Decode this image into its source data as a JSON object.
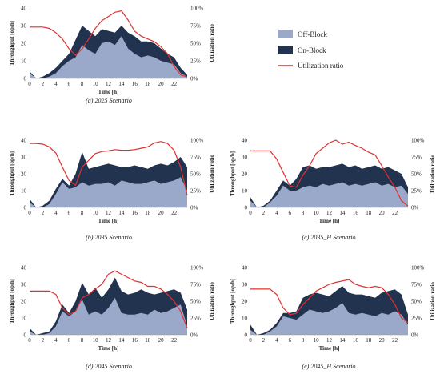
{
  "colors": {
    "off_block": "#9aa9c9",
    "on_block": "#22334f",
    "utilization": "#e03131"
  },
  "legend": {
    "off_block": "Off-Block",
    "on_block": "On-Block",
    "utilization": "Utilization ratio"
  },
  "chart_data": [
    {
      "type": "area",
      "caption": "(a) 2025 Scenario",
      "xlabel": "Time [h]",
      "ylabel": "Throughput [op/h]",
      "y2label": "Utilization ratio",
      "xticks": [
        "0",
        "2",
        "4",
        "6",
        "8",
        "10",
        "12",
        "14",
        "16",
        "18",
        "20",
        "22"
      ],
      "yticks": [
        "0",
        "10",
        "20",
        "30",
        "40"
      ],
      "y2ticks": [
        "0%",
        "25%",
        "50%",
        "75%",
        "100%"
      ],
      "xlim": [
        0,
        24
      ],
      "ylim": [
        0,
        40
      ],
      "y2lim": [
        0,
        100
      ],
      "x": [
        0,
        1,
        2,
        3,
        4,
        5,
        6,
        7,
        8,
        9,
        10,
        11,
        12,
        13,
        14,
        15,
        16,
        17,
        18,
        19,
        20,
        21,
        22,
        23,
        24
      ],
      "series": [
        {
          "name": "Off-Block",
          "values": [
            3,
            0,
            0,
            1,
            3,
            7,
            10,
            12,
            19,
            16,
            14,
            20,
            21,
            19,
            24,
            17,
            14,
            12,
            13,
            12,
            10,
            9,
            8,
            3,
            1
          ]
        },
        {
          "name": "On-Block",
          "values": [
            4,
            0,
            1,
            3,
            6,
            10,
            14,
            22,
            30,
            27,
            24,
            28,
            27,
            26,
            30,
            26,
            24,
            21,
            21,
            20,
            17,
            14,
            12,
            6,
            2
          ]
        },
        {
          "name": "Utilization ratio",
          "axis": "right",
          "values": [
            73,
            73,
            73,
            71,
            65,
            56,
            42,
            33,
            42,
            56,
            71,
            82,
            88,
            94,
            96,
            83,
            67,
            60,
            56,
            52,
            45,
            35,
            17,
            5,
            2
          ]
        }
      ]
    },
    {
      "type": "area",
      "caption": "(b) 2035 Scenario",
      "xlabel": "Time [h]",
      "ylabel": "Throughput [op/h]",
      "y2label": "Utilization ratio",
      "xticks": [
        "0",
        "2",
        "4",
        "6",
        "8",
        "10",
        "12",
        "14",
        "16",
        "18",
        "20",
        "22"
      ],
      "yticks": [
        "0",
        "10",
        "20",
        "30",
        "40"
      ],
      "y2ticks": [
        "0%",
        "25%",
        "50%",
        "75%",
        "100%"
      ],
      "xlim": [
        0,
        24
      ],
      "ylim": [
        0,
        40
      ],
      "y2lim": [
        0,
        100
      ],
      "x": [
        0,
        1,
        2,
        3,
        4,
        5,
        6,
        7,
        8,
        9,
        10,
        11,
        12,
        13,
        14,
        15,
        16,
        17,
        18,
        19,
        20,
        21,
        22,
        23,
        24
      ],
      "series": [
        {
          "name": "Off-Block",
          "values": [
            3,
            0,
            0,
            2,
            8,
            15,
            11,
            12,
            15,
            13,
            14,
            14,
            15,
            13,
            16,
            15,
            14,
            14,
            15,
            16,
            14,
            15,
            16,
            18,
            10
          ]
        },
        {
          "name": "On-Block",
          "values": [
            5,
            0,
            1,
            4,
            11,
            17,
            13,
            20,
            33,
            23,
            24,
            25,
            26,
            25,
            24,
            24,
            25,
            24,
            23,
            25,
            26,
            25,
            27,
            30,
            24
          ]
        },
        {
          "name": "Utilization ratio",
          "axis": "right",
          "values": [
            95,
            95,
            94,
            90,
            81,
            60,
            40,
            33,
            60,
            70,
            80,
            83,
            84,
            86,
            85,
            85,
            86,
            88,
            90,
            96,
            98,
            95,
            85,
            60,
            18
          ]
        }
      ]
    },
    {
      "type": "area",
      "caption": "(c) 2035_H Scenario",
      "xlabel": "Time [h]",
      "ylabel": "Throughput [op/h]",
      "y2label": "Utilization ratio",
      "xticks": [
        "0",
        "2",
        "4",
        "6",
        "8",
        "10",
        "12",
        "14",
        "16",
        "18",
        "20",
        "22"
      ],
      "yticks": [
        "0",
        "10",
        "20",
        "30",
        "40"
      ],
      "y2ticks": [
        "0%",
        "25%",
        "50%",
        "75%",
        "100%"
      ],
      "xlim": [
        0,
        24
      ],
      "ylim": [
        0,
        40
      ],
      "y2lim": [
        0,
        100
      ],
      "x": [
        0,
        1,
        2,
        3,
        4,
        5,
        6,
        7,
        8,
        9,
        10,
        11,
        12,
        13,
        14,
        15,
        16,
        17,
        18,
        19,
        20,
        21,
        22,
        23,
        24
      ],
      "series": [
        {
          "name": "Off-Block",
          "values": [
            4,
            0,
            0,
            3,
            7,
            13,
            10,
            10,
            12,
            13,
            12,
            14,
            13,
            14,
            15,
            13,
            14,
            13,
            14,
            15,
            13,
            14,
            12,
            13,
            8
          ]
        },
        {
          "name": "On-Block",
          "values": [
            6,
            0,
            1,
            4,
            10,
            16,
            13,
            17,
            24,
            25,
            23,
            24,
            24,
            25,
            26,
            24,
            25,
            23,
            24,
            25,
            23,
            24,
            22,
            20,
            12
          ]
        },
        {
          "name": "Utilization ratio",
          "axis": "right",
          "values": [
            84,
            84,
            84,
            84,
            72,
            52,
            32,
            30,
            48,
            62,
            80,
            88,
            96,
            100,
            94,
            97,
            92,
            88,
            82,
            78,
            62,
            45,
            30,
            10,
            2
          ]
        }
      ]
    },
    {
      "type": "area",
      "caption": "(d) 2045 Scenario",
      "xlabel": "Time [h]",
      "ylabel": "Throughput [op/h]",
      "y2label": "Utilization ratio",
      "xticks": [
        "0",
        "2",
        "4",
        "6",
        "8",
        "10",
        "12",
        "14",
        "16",
        "18",
        "20",
        "22"
      ],
      "yticks": [
        "0",
        "10",
        "20",
        "30",
        "40"
      ],
      "y2ticks": [
        "0%",
        "25%",
        "50%",
        "75%",
        "100%"
      ],
      "xlim": [
        0,
        24
      ],
      "ylim": [
        0,
        40
      ],
      "y2lim": [
        0,
        100
      ],
      "x": [
        0,
        1,
        2,
        3,
        4,
        5,
        6,
        7,
        8,
        9,
        10,
        11,
        12,
        13,
        14,
        15,
        16,
        17,
        18,
        19,
        20,
        21,
        22,
        23,
        24
      ],
      "series": [
        {
          "name": "Off-Block",
          "values": [
            2,
            0,
            0,
            1,
            5,
            14,
            11,
            14,
            21,
            12,
            14,
            12,
            16,
            22,
            13,
            12,
            12,
            13,
            12,
            15,
            13,
            14,
            16,
            18,
            5
          ]
        },
        {
          "name": "On-Block",
          "values": [
            4,
            0,
            1,
            2,
            8,
            18,
            13,
            20,
            31,
            24,
            28,
            22,
            27,
            34,
            26,
            24,
            25,
            27,
            25,
            24,
            25,
            26,
            27,
            25,
            15
          ]
        },
        {
          "name": "Utilization ratio",
          "axis": "right",
          "values": [
            65,
            65,
            65,
            65,
            60,
            40,
            30,
            35,
            55,
            60,
            68,
            75,
            90,
            95,
            90,
            85,
            80,
            78,
            72,
            72,
            68,
            60,
            50,
            35,
            10
          ]
        }
      ]
    },
    {
      "type": "area",
      "caption": "(e) 2045_H Scenario",
      "xlabel": "Time [h]",
      "ylabel": "Throughput [op/h]",
      "y2label": "Utilization ratio",
      "xticks": [
        "0",
        "2",
        "4",
        "6",
        "8",
        "10",
        "12",
        "14",
        "16",
        "18",
        "20",
        "22"
      ],
      "yticks": [
        "0",
        "10",
        "20",
        "30",
        "40"
      ],
      "y2ticks": [
        "0%",
        "25%",
        "50%",
        "75%",
        "100%"
      ],
      "xlim": [
        0,
        24
      ],
      "ylim": [
        0,
        40
      ],
      "y2lim": [
        0,
        100
      ],
      "x": [
        0,
        1,
        2,
        3,
        4,
        5,
        6,
        7,
        8,
        9,
        10,
        11,
        12,
        13,
        14,
        15,
        16,
        17,
        18,
        19,
        20,
        21,
        22,
        23,
        24
      ],
      "series": [
        {
          "name": "Off-Block",
          "values": [
            3,
            0,
            0,
            2,
            5,
            11,
            10,
            9,
            12,
            15,
            14,
            13,
            14,
            16,
            19,
            13,
            12,
            13,
            12,
            11,
            13,
            12,
            14,
            12,
            6
          ]
        },
        {
          "name": "On-Block",
          "values": [
            6,
            0,
            1,
            3,
            7,
            13,
            13,
            14,
            22,
            24,
            25,
            24,
            23,
            26,
            29,
            25,
            24,
            24,
            23,
            22,
            25,
            26,
            27,
            24,
            12
          ]
        },
        {
          "name": "Utilization ratio",
          "axis": "right",
          "values": [
            68,
            68,
            68,
            68,
            60,
            40,
            30,
            32,
            45,
            55,
            65,
            70,
            75,
            78,
            80,
            82,
            75,
            72,
            70,
            72,
            70,
            60,
            45,
            25,
            18
          ]
        }
      ]
    }
  ]
}
